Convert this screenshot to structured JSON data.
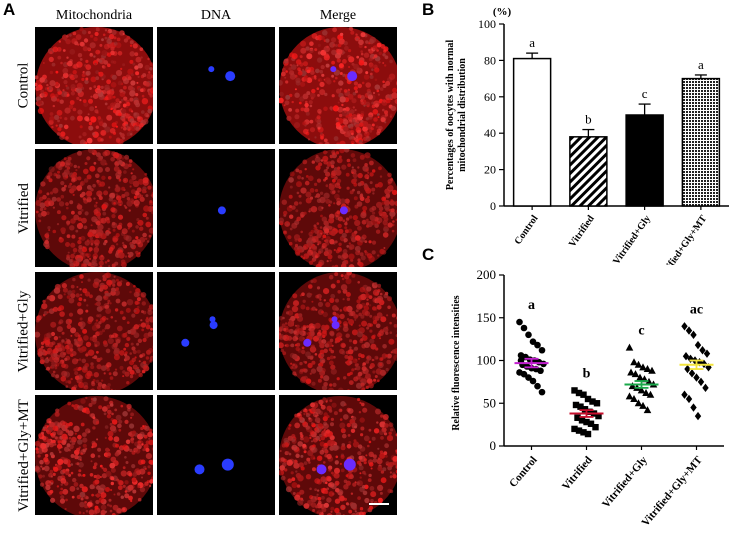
{
  "panel_a": {
    "letter": "A",
    "columns": [
      "Mitochondria",
      "DNA",
      "Merge"
    ],
    "rows": [
      "Control",
      "Vitrified",
      "Vitrified+Gly",
      "Vitrified+Gly+MT"
    ]
  },
  "panel_b": {
    "letter": "B"
  },
  "panel_c": {
    "letter": "C"
  },
  "chart_data": [
    {
      "type": "bar",
      "unit_label": "(%)",
      "ylabel": "Percentages of oocytes with normal mitochondrial distribution",
      "categories": [
        "Control",
        "Vitrified",
        "Vitrified+Gly",
        "Vitrified+Gly+MT"
      ],
      "values": [
        81,
        38,
        50,
        70
      ],
      "errors": [
        3,
        4,
        6,
        2
      ],
      "significance": [
        "a",
        "b",
        "c",
        "a"
      ],
      "fills": [
        "white",
        "diagonal-hatch",
        "black",
        "crosshatch"
      ],
      "ylim": [
        0,
        100
      ],
      "yticks": [
        0,
        20,
        40,
        60,
        80,
        100
      ]
    },
    {
      "type": "scatter",
      "ylabel": "Relative fluorescence intensities",
      "categories": [
        "Control",
        "Vitrified",
        "Vitrified+Gly",
        "Vitrified+Gly+MT"
      ],
      "ylim": [
        0,
        200
      ],
      "yticks": [
        0,
        50,
        100,
        150,
        200
      ],
      "significance": [
        "a",
        "b",
        "c",
        "ac"
      ],
      "markers": [
        "circle",
        "square",
        "triangle",
        "diamond"
      ],
      "mean_colors": [
        "#c31fd0",
        "#c8102e",
        "#1aa84a",
        "#f3e43c"
      ],
      "series": [
        {
          "means": 97,
          "sem": 5,
          "values": [
            145,
            138,
            130,
            122,
            118,
            112,
            106,
            104,
            101,
            100,
            98,
            96,
            95,
            93,
            91,
            90,
            88,
            86,
            84,
            80,
            76,
            70,
            63,
            100
          ]
        },
        {
          "means": 38,
          "sem": 4,
          "values": [
            65,
            62,
            60,
            55,
            52,
            50,
            48,
            46,
            43,
            40,
            38,
            35,
            33,
            30,
            28,
            26,
            22,
            20,
            18,
            16,
            14
          ]
        },
        {
          "means": 72,
          "sem": 4,
          "values": [
            115,
            98,
            95,
            92,
            90,
            88,
            86,
            84,
            80,
            78,
            75,
            72,
            70,
            68,
            65,
            62,
            60,
            58,
            55,
            50,
            47,
            42
          ]
        },
        {
          "means": 95,
          "sem": 5,
          "values": [
            140,
            135,
            130,
            118,
            112,
            108,
            105,
            102,
            100,
            98,
            96,
            92,
            90,
            85,
            80,
            75,
            68,
            60,
            55,
            45,
            35
          ]
        }
      ]
    }
  ]
}
